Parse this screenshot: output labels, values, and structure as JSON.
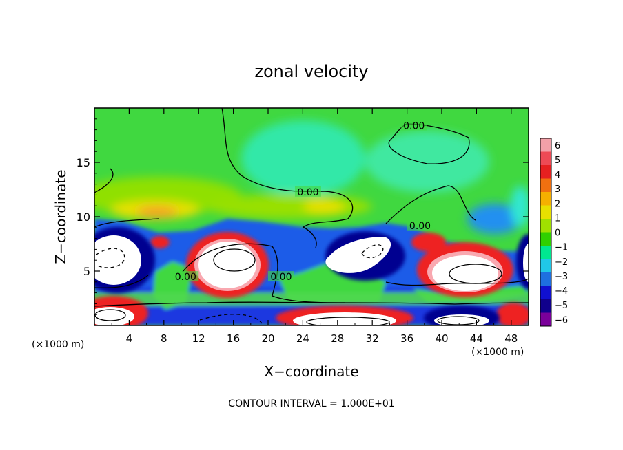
{
  "chart_data": {
    "type": "heatmap",
    "title": "zonal velocity",
    "xlabel": "X−coordinate",
    "ylabel": "Z−coordinate",
    "x_unit": "(×1000 m)",
    "z_unit": "(×1000 m)",
    "xlim": [
      0,
      50
    ],
    "ylim": [
      0,
      20
    ],
    "x_ticks": [
      "4",
      "8",
      "12",
      "16",
      "20",
      "24",
      "28",
      "32",
      "36",
      "40",
      "44",
      "48"
    ],
    "y_ticks": [
      "5",
      "10",
      "15"
    ],
    "contour_interval_text": "CONTOUR INTERVAL = 1.000E+01",
    "contour_labels": [
      {
        "text": "0.00",
        "x": 36.8,
        "z": 18.2
      },
      {
        "text": "0.00",
        "x": 24.6,
        "z": 12.1
      },
      {
        "text": "0.00",
        "x": 37.5,
        "z": 9.0
      },
      {
        "text": "0.00",
        "x": 10.5,
        "z": 4.3
      },
      {
        "text": "0.00",
        "x": 21.5,
        "z": 4.3
      }
    ],
    "colorbar": {
      "ticks": [
        "6",
        "5",
        "4",
        "3",
        "2",
        "1",
        "0",
        "−1",
        "−2",
        "−3",
        "−4",
        "−5",
        "−6"
      ],
      "colors": [
        "#f3a0a8",
        "#ee4a55",
        "#e62020",
        "#f07010",
        "#f5b000",
        "#e8e000",
        "#a0e000",
        "#30d000",
        "#00e890",
        "#20c8e8",
        "#1e70e0",
        "#1010d0",
        "#10008c",
        "#7a009a"
      ]
    },
    "palette": {
      "white": "#ffffff",
      "pink": "#f9a8b0",
      "red": "#ee2222",
      "orange": "#f59a18",
      "yellow": "#e8e000",
      "lime": "#90e000",
      "green": "#40d840",
      "cyan": "#30e8c0",
      "skyblue": "#2090f0",
      "blue": "#1a2ee0",
      "navy": "#000090"
    }
  }
}
